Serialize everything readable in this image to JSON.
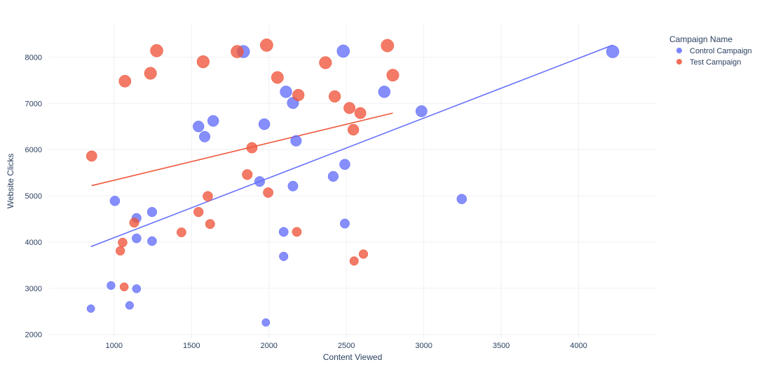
{
  "chart_data": {
    "type": "scatter",
    "xlabel": "Content Viewed",
    "ylabel": "Website Clicks",
    "xlim": [
      580,
      4500
    ],
    "ylim": [
      1920,
      8720
    ],
    "x_ticks": [
      1000,
      1500,
      2000,
      2500,
      3000,
      3500,
      4000
    ],
    "y_ticks": [
      2000,
      3000,
      4000,
      5000,
      6000,
      7000,
      8000
    ],
    "grid": true,
    "legend": {
      "title": "Campaign Name",
      "placement": "top-right"
    },
    "series": [
      {
        "name": "Control Campaign",
        "color": "#636efa",
        "points": [
          {
            "x": 850,
            "y": 2560,
            "s": 0.3
          },
          {
            "x": 980,
            "y": 3060,
            "s": 0.35
          },
          {
            "x": 1005,
            "y": 4890,
            "s": 0.55
          },
          {
            "x": 1100,
            "y": 2630,
            "s": 0.33
          },
          {
            "x": 1145,
            "y": 2990,
            "s": 0.37
          },
          {
            "x": 1145,
            "y": 4080,
            "s": 0.47
          },
          {
            "x": 1145,
            "y": 4520,
            "s": 0.5
          },
          {
            "x": 1245,
            "y": 4020,
            "s": 0.46
          },
          {
            "x": 1245,
            "y": 4650,
            "s": 0.52
          },
          {
            "x": 1545,
            "y": 6500,
            "s": 0.72
          },
          {
            "x": 1585,
            "y": 6280,
            "s": 0.69
          },
          {
            "x": 1640,
            "y": 6620,
            "s": 0.73
          },
          {
            "x": 1835,
            "y": 8120,
            "s": 0.9
          },
          {
            "x": 1940,
            "y": 5310,
            "s": 0.6
          },
          {
            "x": 1970,
            "y": 6550,
            "s": 0.73
          },
          {
            "x": 1980,
            "y": 2260,
            "s": 0.3
          },
          {
            "x": 2095,
            "y": 4220,
            "s": 0.48
          },
          {
            "x": 2095,
            "y": 3690,
            "s": 0.42
          },
          {
            "x": 2110,
            "y": 7250,
            "s": 0.81
          },
          {
            "x": 2155,
            "y": 7010,
            "s": 0.78
          },
          {
            "x": 2155,
            "y": 5210,
            "s": 0.58
          },
          {
            "x": 2175,
            "y": 6190,
            "s": 0.69
          },
          {
            "x": 2415,
            "y": 5420,
            "s": 0.61
          },
          {
            "x": 2480,
            "y": 8130,
            "s": 0.91
          },
          {
            "x": 2490,
            "y": 5680,
            "s": 0.64
          },
          {
            "x": 2490,
            "y": 4400,
            "s": 0.49
          },
          {
            "x": 2745,
            "y": 7250,
            "s": 0.81
          },
          {
            "x": 2985,
            "y": 6830,
            "s": 0.76
          },
          {
            "x": 3245,
            "y": 4930,
            "s": 0.55
          },
          {
            "x": 4220,
            "y": 8120,
            "s": 0.91
          }
        ],
        "trendline": {
          "x": [
            850,
            4220
          ],
          "y": [
            3900,
            8260
          ]
        }
      },
      {
        "name": "Test Campaign",
        "color": "#ef553b",
        "points": [
          {
            "x": 855,
            "y": 5860,
            "s": 0.66
          },
          {
            "x": 1040,
            "y": 3810,
            "s": 0.44
          },
          {
            "x": 1055,
            "y": 3990,
            "s": 0.46
          },
          {
            "x": 1065,
            "y": 3030,
            "s": 0.37
          },
          {
            "x": 1070,
            "y": 7480,
            "s": 0.84
          },
          {
            "x": 1130,
            "y": 4420,
            "s": 0.51
          },
          {
            "x": 1235,
            "y": 7650,
            "s": 0.86
          },
          {
            "x": 1275,
            "y": 8140,
            "s": 0.91
          },
          {
            "x": 1435,
            "y": 4210,
            "s": 0.48
          },
          {
            "x": 1545,
            "y": 4650,
            "s": 0.53
          },
          {
            "x": 1575,
            "y": 7900,
            "s": 0.88
          },
          {
            "x": 1605,
            "y": 4990,
            "s": 0.56
          },
          {
            "x": 1620,
            "y": 4390,
            "s": 0.5
          },
          {
            "x": 1795,
            "y": 8120,
            "s": 0.91
          },
          {
            "x": 1860,
            "y": 5460,
            "s": 0.61
          },
          {
            "x": 1890,
            "y": 6040,
            "s": 0.67
          },
          {
            "x": 1985,
            "y": 8260,
            "s": 0.93
          },
          {
            "x": 1995,
            "y": 5070,
            "s": 0.57
          },
          {
            "x": 2055,
            "y": 7560,
            "s": 0.85
          },
          {
            "x": 2180,
            "y": 4220,
            "s": 0.48
          },
          {
            "x": 2190,
            "y": 7180,
            "s": 0.8
          },
          {
            "x": 2365,
            "y": 7880,
            "s": 0.88
          },
          {
            "x": 2425,
            "y": 7150,
            "s": 0.8
          },
          {
            "x": 2520,
            "y": 6900,
            "s": 0.77
          },
          {
            "x": 2545,
            "y": 6430,
            "s": 0.72
          },
          {
            "x": 2550,
            "y": 3590,
            "s": 0.42
          },
          {
            "x": 2590,
            "y": 6790,
            "s": 0.76
          },
          {
            "x": 2610,
            "y": 3740,
            "s": 0.43
          },
          {
            "x": 2765,
            "y": 8250,
            "s": 0.93
          },
          {
            "x": 2800,
            "y": 7610,
            "s": 0.86
          }
        ],
        "trendline": {
          "x": [
            855,
            2800
          ],
          "y": [
            5220,
            6790
          ]
        }
      }
    ]
  }
}
